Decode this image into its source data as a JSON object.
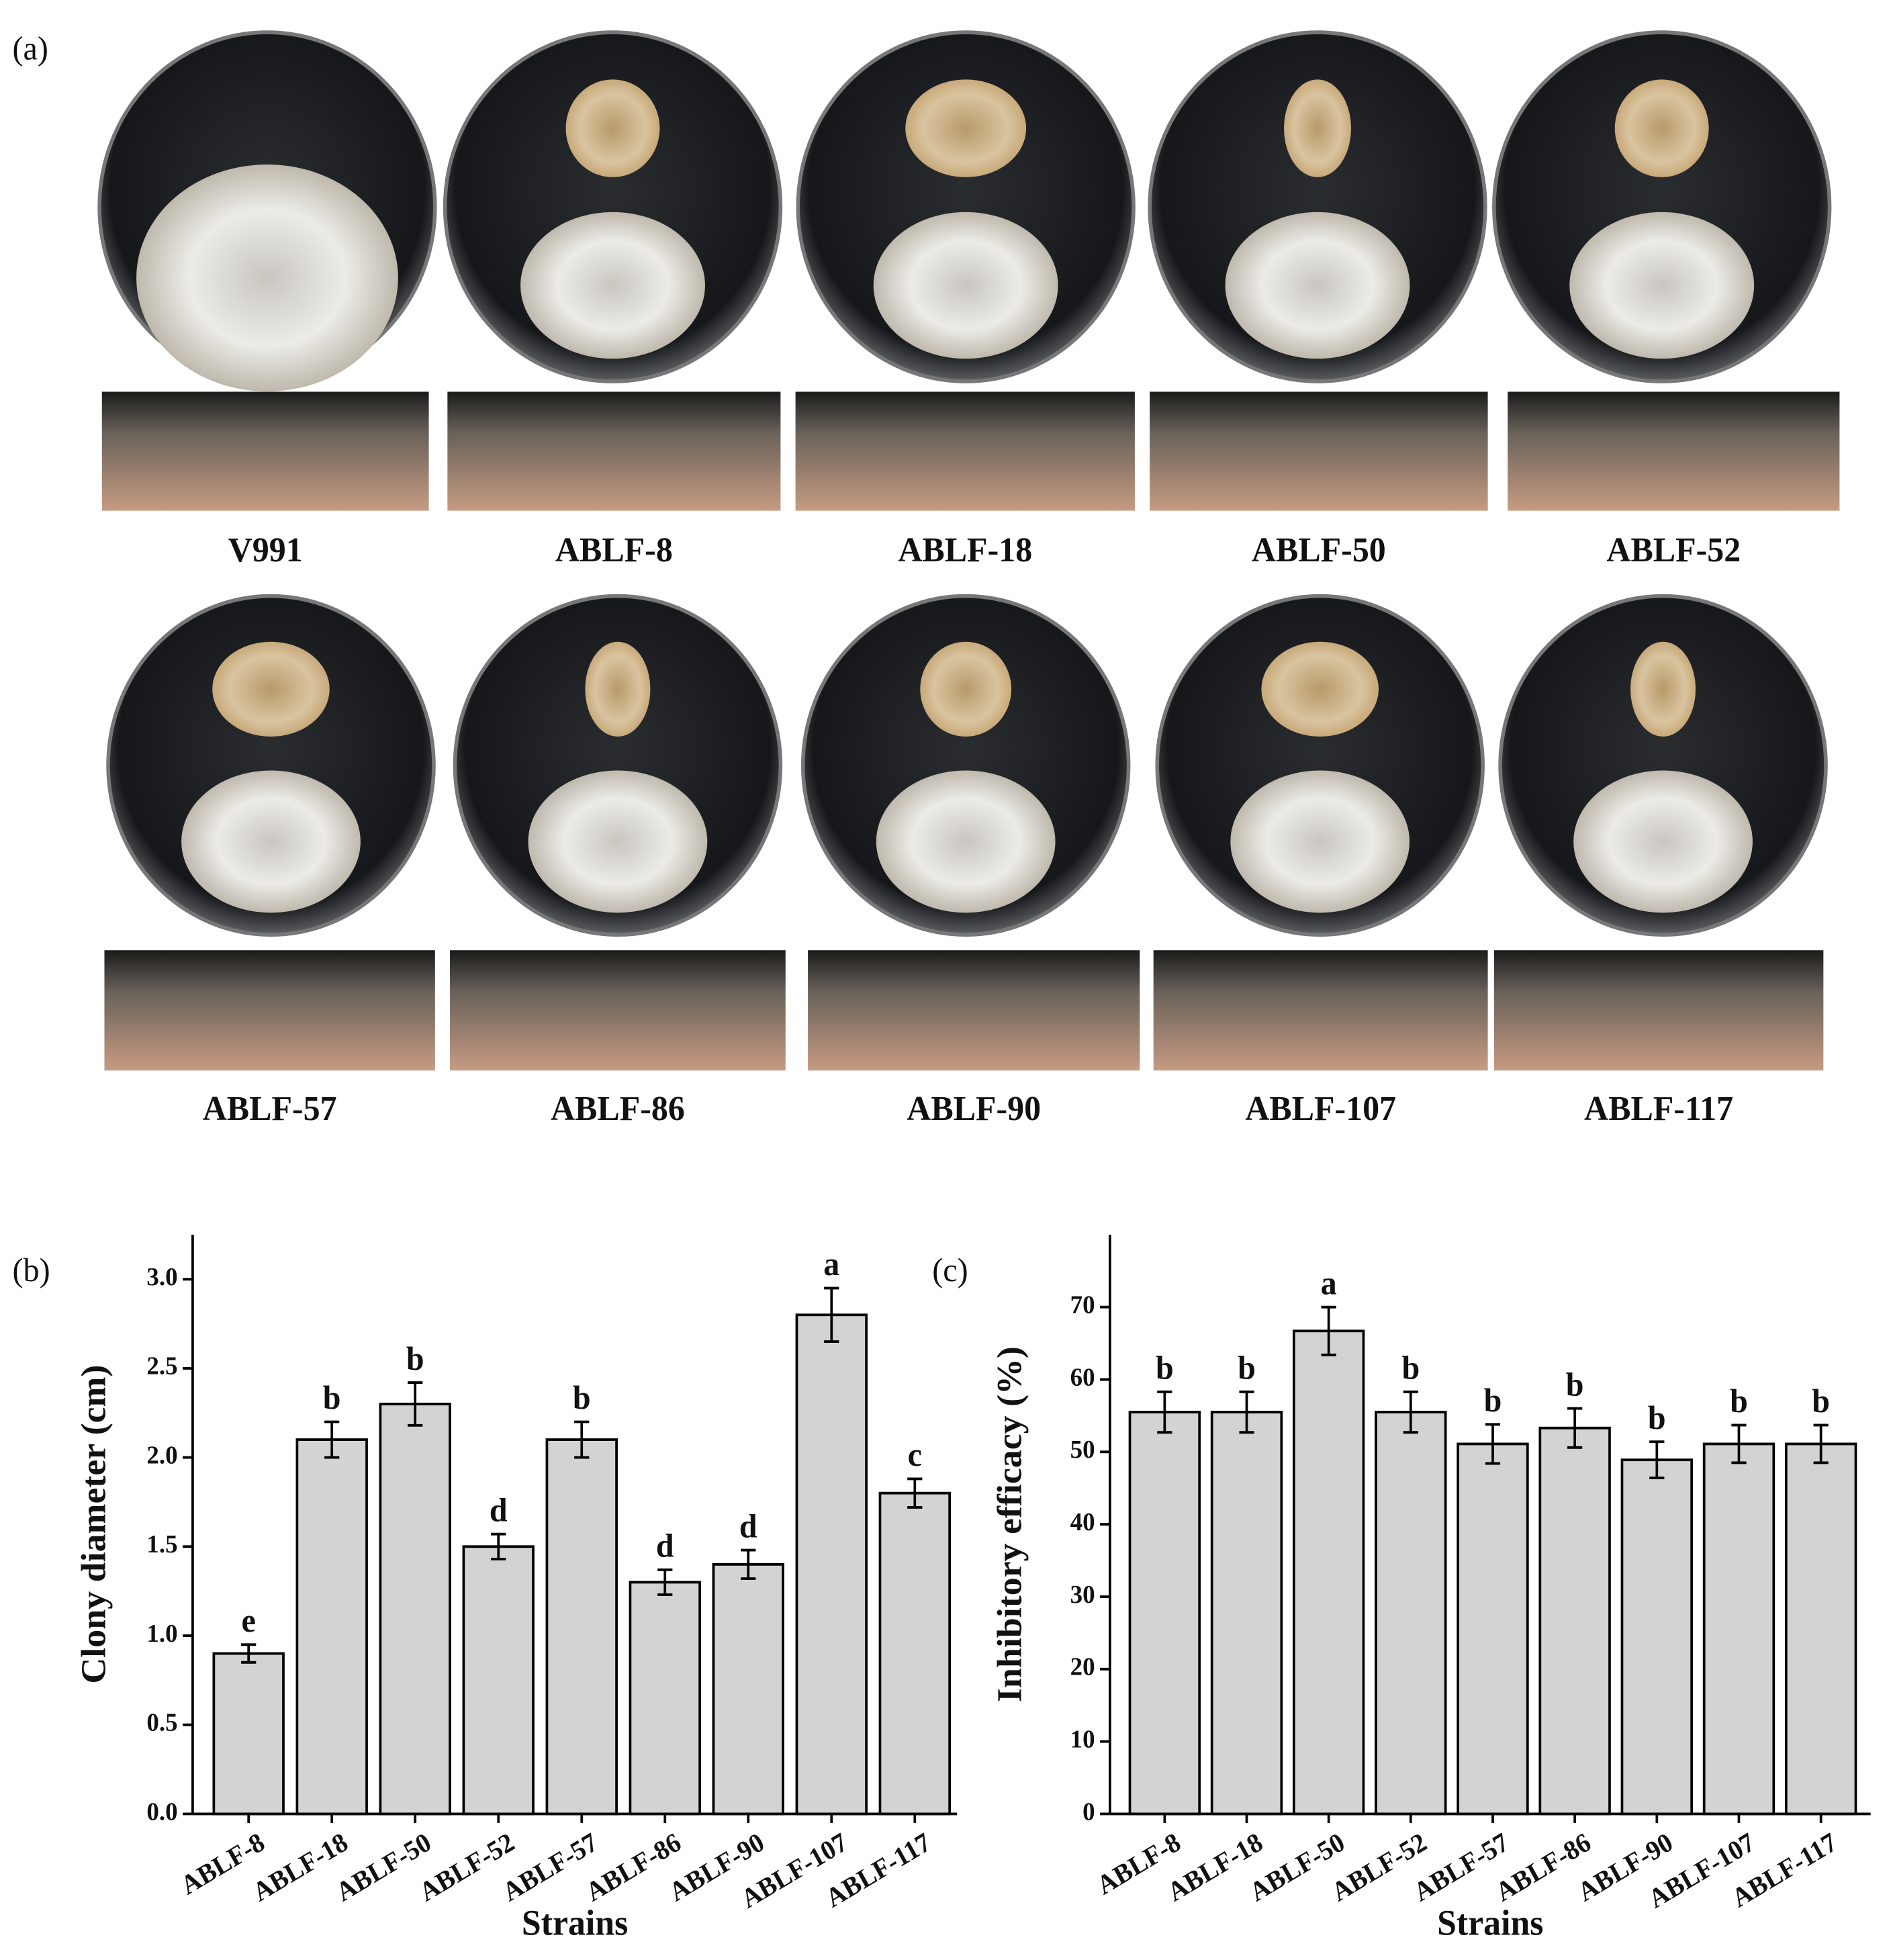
{
  "panel_a": {
    "label": "(a)",
    "strains": [
      "V991",
      "ABLF-8",
      "ABLF-18",
      "ABLF-50",
      "ABLF-52",
      "ABLF-57",
      "ABLF-86",
      "ABLF-90",
      "ABLF-107",
      "ABLF-117"
    ]
  },
  "chart_data": [
    {
      "type": "bar",
      "label": "(b)",
      "ylabel": "Clony diameter  (cm)",
      "xlabel": "Strains",
      "categories": [
        "ABLF-8",
        "ABLF-18",
        "ABLF-50",
        "ABLF-52",
        "ABLF-57",
        "ABLF-86",
        "ABLF-90",
        "ABLF-107",
        "ABLF-117"
      ],
      "values": [
        0.9,
        2.1,
        2.3,
        1.5,
        2.1,
        1.3,
        1.4,
        2.8,
        1.8
      ],
      "errors": [
        0.05,
        0.1,
        0.12,
        0.07,
        0.1,
        0.07,
        0.08,
        0.15,
        0.08
      ],
      "letters": [
        "e",
        "b",
        "b",
        "d",
        "b",
        "d",
        "d",
        "a",
        "c"
      ],
      "color": "#d3d3d3",
      "ylim": [
        0,
        3.25
      ],
      "yticks": [
        {
          "value": 0,
          "label": "0.0"
        },
        0.5,
        {
          "value": 1,
          "label": "1.0"
        },
        1.5,
        {
          "value": 2,
          "label": "2.0"
        },
        2.5,
        {
          "value": 3,
          "label": "3.0"
        }
      ]
    },
    {
      "type": "bar",
      "label": "(c)",
      "ylabel": "Inhibitory efficacy (%)",
      "xlabel": "Strains",
      "categories": [
        "ABLF-8",
        "ABLF-18",
        "ABLF-50",
        "ABLF-52",
        "ABLF-57",
        "ABLF-86",
        "ABLF-90",
        "ABLF-107",
        "ABLF-117"
      ],
      "values": [
        55.5,
        55.5,
        66.7,
        55.5,
        51.1,
        53.3,
        48.9,
        51.1,
        51.1
      ],
      "errors": [
        2.8,
        2.8,
        3.3,
        2.8,
        2.7,
        2.7,
        2.5,
        2.6,
        2.6
      ],
      "letters": [
        "b",
        "b",
        "a",
        "b",
        "b",
        "b",
        "b",
        "b",
        "b"
      ],
      "color": "#d3d3d3",
      "ylim": [
        0,
        80
      ],
      "yticks": [
        0,
        10,
        20,
        30,
        40,
        50,
        60,
        70
      ]
    }
  ]
}
